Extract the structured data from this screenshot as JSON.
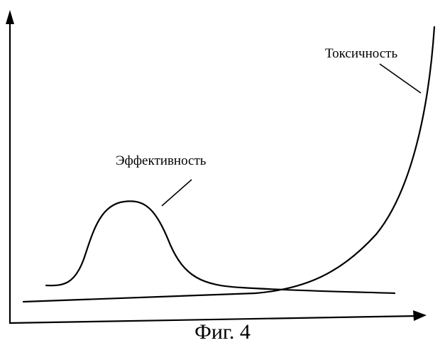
{
  "diagram": {
    "curves": [
      {
        "id": "efficacy",
        "label": "Эффективность"
      },
      {
        "id": "toxicity",
        "label": "Токсичность"
      }
    ],
    "caption": "Фиг. 4",
    "line_color": "#000000"
  }
}
